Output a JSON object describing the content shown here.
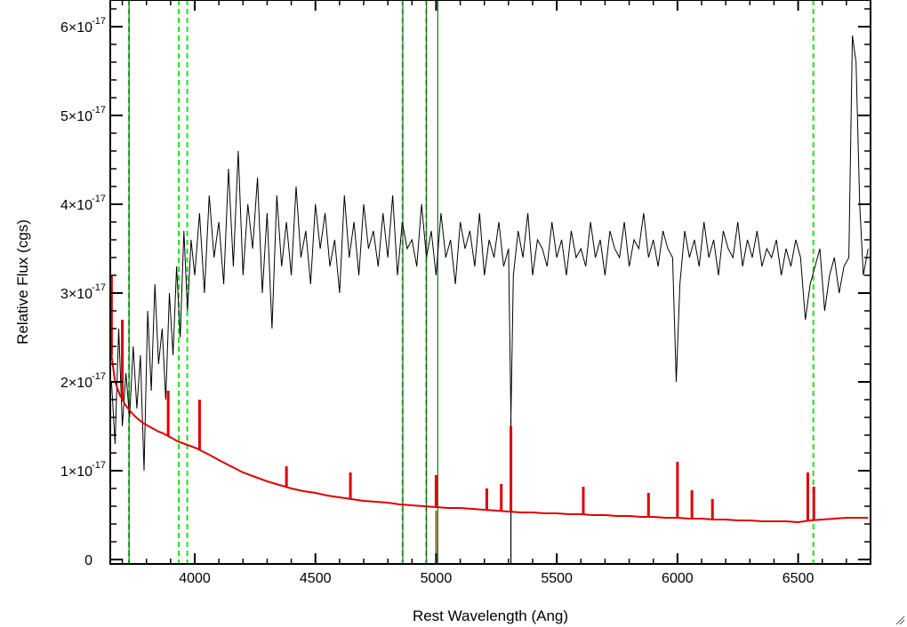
{
  "chart_data": {
    "type": "line",
    "xlabel": "Rest Wavelength (Ang)",
    "ylabel": "Relative Flux (cgs)",
    "xlim": [
      3650,
      6800
    ],
    "ylim": [
      -5e-19,
      6.3e-17
    ],
    "x_ticks": [
      4000,
      4500,
      5000,
      5500,
      6000,
      6500
    ],
    "x_tick_labels": [
      "4000",
      "4500",
      "5000",
      "5500",
      "6000",
      "6500"
    ],
    "y_ticks": [
      0,
      1e-17,
      2e-17,
      3e-17,
      4e-17,
      5e-17,
      6e-17
    ],
    "y_tick_labels": [
      {
        "mantissa": "0",
        "exp": ""
      },
      {
        "mantissa": "1×10",
        "exp": "-17"
      },
      {
        "mantissa": "2×10",
        "exp": "-17"
      },
      {
        "mantissa": "3×10",
        "exp": "-17"
      },
      {
        "mantissa": "4×10",
        "exp": "-17"
      },
      {
        "mantissa": "5×10",
        "exp": "-17"
      },
      {
        "mantissa": "6×10",
        "exp": "-17"
      }
    ],
    "grid": false,
    "colors": {
      "observed": "#000000",
      "template": "#dd0000",
      "lines_dashed": "#22dd22",
      "lines_solid": "#226622",
      "marker": "#996633"
    },
    "series": [
      {
        "color": "#000000",
        "x": [
          3655,
          3670,
          3685,
          3700,
          3715,
          3730,
          3745,
          3760,
          3775,
          3790,
          3805,
          3820,
          3835,
          3850,
          3865,
          3880,
          3895,
          3910,
          3925,
          3940,
          3955,
          3970,
          3985,
          4000,
          4020,
          4040,
          4060,
          4080,
          4100,
          4120,
          4140,
          4160,
          4180,
          4200,
          4220,
          4240,
          4260,
          4280,
          4300,
          4320,
          4340,
          4360,
          4380,
          4400,
          4420,
          4440,
          4460,
          4480,
          4500,
          4520,
          4540,
          4560,
          4580,
          4600,
          4620,
          4640,
          4660,
          4680,
          4700,
          4720,
          4740,
          4760,
          4780,
          4800,
          4820,
          4840,
          4860,
          4880,
          4900,
          4920,
          4940,
          4960,
          4980,
          5000,
          5020,
          5040,
          5060,
          5080,
          5100,
          5120,
          5140,
          5160,
          5180,
          5200,
          5220,
          5240,
          5260,
          5280,
          5300,
          5310,
          5320,
          5340,
          5360,
          5380,
          5400,
          5420,
          5440,
          5460,
          5480,
          5500,
          5520,
          5540,
          5560,
          5580,
          5600,
          5620,
          5640,
          5660,
          5680,
          5700,
          5720,
          5740,
          5760,
          5780,
          5800,
          5820,
          5840,
          5860,
          5880,
          5900,
          5920,
          5940,
          5960,
          5980,
          5995,
          6010,
          6030,
          6050,
          6070,
          6090,
          6110,
          6130,
          6150,
          6170,
          6190,
          6210,
          6230,
          6250,
          6270,
          6290,
          6310,
          6330,
          6350,
          6370,
          6390,
          6410,
          6430,
          6450,
          6470,
          6490,
          6510,
          6530,
          6550,
          6570,
          6590,
          6610,
          6630,
          6650,
          6670,
          6690,
          6710,
          6725,
          6740,
          6755,
          6770,
          6790
        ],
        "y": [
          2e-17,
          1.3e-17,
          2.6e-17,
          1.5e-17,
          2.1e-17,
          1.6e-17,
          2.4e-17,
          1.7e-17,
          2.3e-17,
          1e-17,
          2.8e-17,
          1.9e-17,
          3.1e-17,
          2.2e-17,
          2.6e-17,
          1.8e-17,
          3e-17,
          2.3e-17,
          3.3e-17,
          2.5e-17,
          3.7e-17,
          2.8e-17,
          3.6e-17,
          3.2e-17,
          3.9e-17,
          3e-17,
          4.1e-17,
          3.4e-17,
          3.8e-17,
          3.1e-17,
          4.4e-17,
          3.3e-17,
          4.6e-17,
          3.2e-17,
          4e-17,
          3.5e-17,
          4.3e-17,
          3e-17,
          3.9e-17,
          2.6e-17,
          4.1e-17,
          3.3e-17,
          3.8e-17,
          3.2e-17,
          4.2e-17,
          3.4e-17,
          3.7e-17,
          3.1e-17,
          4e-17,
          3.5e-17,
          3.9e-17,
          3.3e-17,
          3.6e-17,
          3e-17,
          4.1e-17,
          3.4e-17,
          3.8e-17,
          3.2e-17,
          4e-17,
          3.5e-17,
          3.7e-17,
          3.3e-17,
          3.9e-17,
          3.4e-17,
          4.1e-17,
          3.2e-17,
          3.8e-17,
          3.5e-17,
          3.6e-17,
          3.3e-17,
          4e-17,
          3.4e-17,
          3.7e-17,
          3.2e-17,
          3.9e-17,
          3.4e-17,
          3.6e-17,
          3.1e-17,
          3.8e-17,
          3.5e-17,
          3.7e-17,
          3.3e-17,
          3.9e-17,
          3.2e-17,
          3.6e-17,
          3.4e-17,
          3.8e-17,
          3.3e-17,
          3.5e-17,
          1.6e-17,
          3.2e-17,
          3.7e-17,
          3.4e-17,
          3.9e-17,
          3.2e-17,
          3.6e-17,
          3.5e-17,
          3.3e-17,
          3.8e-17,
          3.4e-17,
          3.6e-17,
          3.2e-17,
          3.7e-17,
          3.4e-17,
          3.5e-17,
          3.3e-17,
          3.8e-17,
          3.4e-17,
          3.6e-17,
          3.2e-17,
          3.7e-17,
          3.5e-17,
          3.4e-17,
          3.8e-17,
          3.3e-17,
          3.6e-17,
          3.5e-17,
          3.9e-17,
          3.4e-17,
          3.6e-17,
          3.3e-17,
          3.7e-17,
          3.5e-17,
          3.4e-17,
          2e-17,
          3.1e-17,
          3.7e-17,
          3.4e-17,
          3.6e-17,
          3.3e-17,
          3.8e-17,
          3.4e-17,
          3.6e-17,
          3.2e-17,
          3.7e-17,
          3.5e-17,
          3.4e-17,
          3.8e-17,
          3.3e-17,
          3.6e-17,
          3.4e-17,
          3.7e-17,
          3.3e-17,
          3.5e-17,
          3.4e-17,
          3.6e-17,
          3.2e-17,
          3.5e-17,
          3.3e-17,
          3.6e-17,
          3.4e-17,
          2.7e-17,
          3.1e-17,
          3.3e-17,
          3.5e-17,
          2.8e-17,
          3.2e-17,
          3.4e-17,
          3e-17,
          3.3e-17,
          3.4e-17,
          5.9e-17,
          5.6e-17,
          4e-17,
          3.2e-17,
          3.5e-17
        ]
      },
      {
        "color": "#dd0000",
        "x": [
          3655,
          3670,
          3690,
          3710,
          3730,
          3750,
          3770,
          3790,
          3810,
          3830,
          3850,
          3870,
          3890,
          3910,
          3930,
          3950,
          3970,
          3990,
          4010,
          4030,
          4060,
          4100,
          4150,
          4200,
          4250,
          4300,
          4350,
          4400,
          4450,
          4500,
          4550,
          4600,
          4650,
          4700,
          4750,
          4800,
          4850,
          4900,
          4950,
          5000,
          5050,
          5100,
          5150,
          5200,
          5250,
          5300,
          5350,
          5400,
          5450,
          5500,
          5550,
          5600,
          5650,
          5700,
          5750,
          5800,
          5850,
          5900,
          5950,
          6000,
          6050,
          6100,
          6150,
          6200,
          6250,
          6300,
          6350,
          6400,
          6450,
          6500,
          6550,
          6600,
          6650,
          6700,
          6750,
          6790
        ],
        "y": [
          2.3e-17,
          2e-17,
          1.85e-17,
          1.75e-17,
          1.68e-17,
          1.62e-17,
          1.57e-17,
          1.53e-17,
          1.5e-17,
          1.47e-17,
          1.44e-17,
          1.42e-17,
          1.39e-17,
          1.36e-17,
          1.33e-17,
          1.31e-17,
          1.29e-17,
          1.27e-17,
          1.25e-17,
          1.22e-17,
          1.18e-17,
          1.12e-17,
          1.05e-17,
          9.8e-18,
          9.3e-18,
          8.8e-18,
          8.4e-18,
          8e-18,
          7.7e-18,
          7.5e-18,
          7.2e-18,
          7e-18,
          6.8e-18,
          6.6e-18,
          6.5e-18,
          6.4e-18,
          6.2e-18,
          6.1e-18,
          6e-18,
          5.9e-18,
          5.8e-18,
          5.8e-18,
          5.7e-18,
          5.6e-18,
          5.5e-18,
          5.4e-18,
          5.3e-18,
          5.3e-18,
          5.2e-18,
          5.2e-18,
          5.1e-18,
          5.1e-18,
          5e-18,
          5e-18,
          4.9e-18,
          4.9e-18,
          4.8e-18,
          4.8e-18,
          4.7e-18,
          4.7e-18,
          4.6e-18,
          4.6e-18,
          4.5e-18,
          4.5e-18,
          4.4e-18,
          4.4e-18,
          4.3e-18,
          4.3e-18,
          4.3e-18,
          4.2e-18,
          4.4e-18,
          4.5e-18,
          4.6e-18,
          4.7e-18,
          4.7e-18,
          4.7e-18
        ]
      }
    ],
    "template_emission_lines": [
      {
        "x": 3655,
        "y": 3.2e-17
      },
      {
        "x": 3700,
        "y": 2.7e-17
      },
      {
        "x": 3890,
        "y": 1.9e-17
      },
      {
        "x": 4020,
        "y": 1.8e-17
      },
      {
        "x": 4380,
        "y": 1.05e-17
      },
      {
        "x": 4645,
        "y": 9.8e-18
      },
      {
        "x": 5000,
        "y": 9.5e-18
      },
      {
        "x": 5210,
        "y": 8e-18
      },
      {
        "x": 5270,
        "y": 8.5e-18
      },
      {
        "x": 5310,
        "y": 1.5e-17
      },
      {
        "x": 5610,
        "y": 8.2e-18
      },
      {
        "x": 5880,
        "y": 7.5e-18
      },
      {
        "x": 6000,
        "y": 1.1e-17
      },
      {
        "x": 6060,
        "y": 7.8e-18
      },
      {
        "x": 6145,
        "y": 6.8e-18
      },
      {
        "x": 6540,
        "y": 9.8e-18
      },
      {
        "x": 6565,
        "y": 8.2e-18
      }
    ],
    "dashed_lines_x": [
      3727,
      3934,
      3969,
      4861,
      4959,
      6563
    ],
    "solid_lines_x": [
      3728,
      4862,
      4960,
      5007
    ],
    "marker_line_x": 5000,
    "observed_spike_x": 5310
  }
}
